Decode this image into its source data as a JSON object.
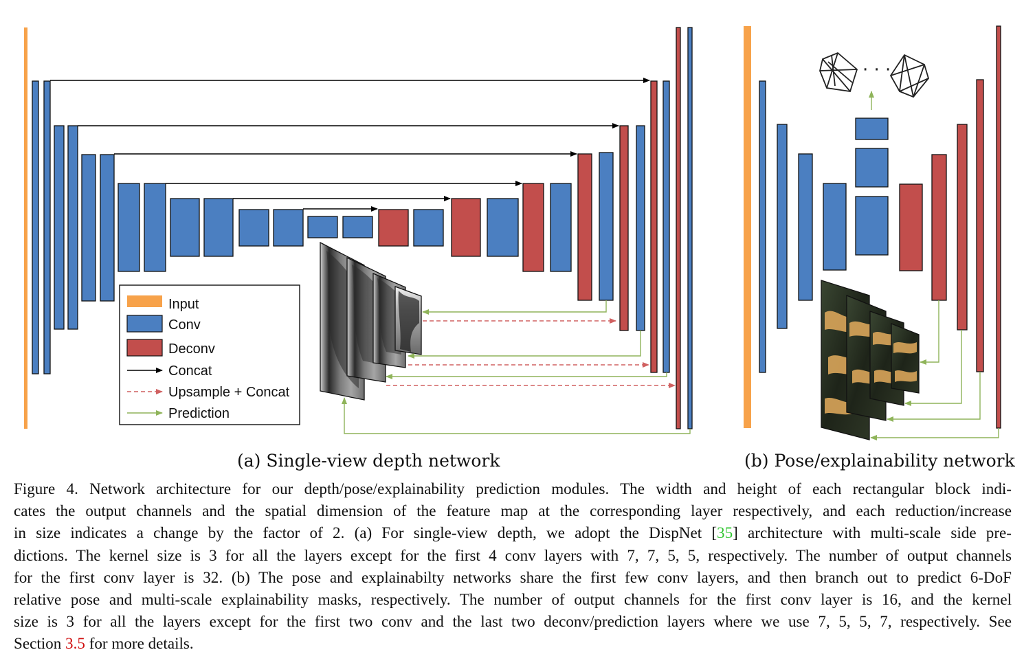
{
  "colors": {
    "input": "#f7a24a",
    "conv": "#4b7fc1",
    "deconv": "#c24e4c",
    "concat": "#000000",
    "upsample": "#d06060",
    "prediction": "#8fb45a"
  },
  "legend": {
    "input": "Input",
    "conv": "Conv",
    "deconv": "Deconv",
    "concat": "Concat",
    "upsample": "Upsample + Concat",
    "prediction": "Prediction"
  },
  "pose_dots": "· · ·",
  "subcaption_a": "(a) Single-view depth network",
  "subcaption_b": "(b) Pose/explainability network",
  "caption": {
    "l1": "Figure 4. Network architecture for our depth/pose/explainability prediction modules. The width and height of each rectangular block indi-",
    "l2": "cates the output channels and the spatial dimension of the feature map at the corresponding layer respectively, and each reduction/increase",
    "l3": "in size indicates a change by the factor of 2. (a) For single-view depth, we adopt the DispNet [",
    "ref1": "35",
    "l4": "] architecture with multi-scale side pre-",
    "l5": "dictions. The kernel size is 3 for all the layers except for the first 4 conv layers with 7, 7, 5, 5, respectively. The number of output channels",
    "l6": "for the first conv layer is 32. (b) The pose and explainabilty networks share the first few conv layers, and then branch out to predict 6-DoF",
    "l7": "relative pose and multi-scale explainability masks, respectively. The number of output channels for the first conv layer is 16, and the kernel",
    "l8": "size is 3 for all the layers except for the first two conv and the last two deconv/prediction layers where we use 7, 5, 5, 7, respectively. See",
    "l9a": "Section ",
    "ref2": "3.5",
    "l9b": " for more details."
  }
}
